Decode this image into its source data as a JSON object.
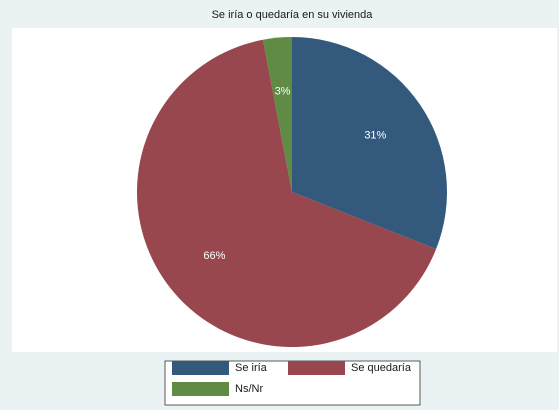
{
  "chart_data": {
    "type": "pie",
    "title": "Se iría o quedaría en su vivienda",
    "categories": [
      "Se iría",
      "Se quedaría",
      "Ns/Nr"
    ],
    "values": [
      31,
      66,
      3
    ],
    "value_labels": [
      "31%",
      "66%",
      "3%"
    ],
    "colors": [
      "#335a7d",
      "#97474d",
      "#5f8b45"
    ]
  }
}
